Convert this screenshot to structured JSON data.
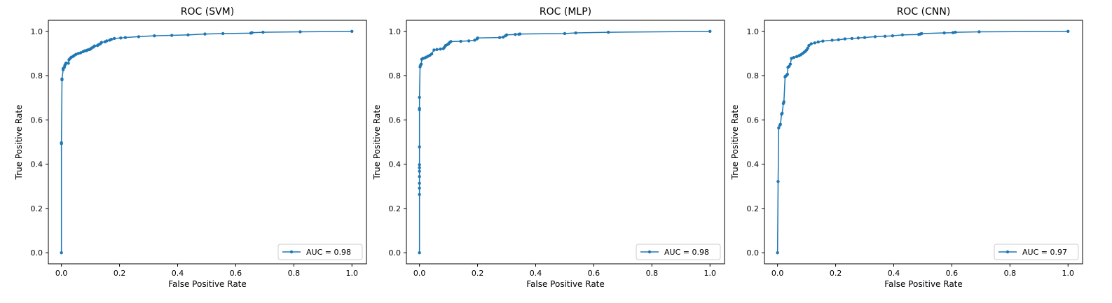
{
  "figure": {
    "background": "#ffffff"
  },
  "chart_data": [
    {
      "type": "line",
      "title": "ROC (SVM)",
      "xlabel": "False Positive Rate",
      "ylabel": "True Positive Rate",
      "xlim": [
        -0.045,
        1.05
      ],
      "ylim": [
        -0.05,
        1.05
      ],
      "xticks": [
        "0.0",
        "0.2",
        "0.4",
        "0.6",
        "0.8",
        "1.0"
      ],
      "yticks": [
        "0.0",
        "0.2",
        "0.4",
        "0.6",
        "0.8",
        "1.0"
      ],
      "legend_position": "lower-right",
      "grid": false,
      "series": [
        {
          "name": "AUC = 0.98",
          "color": "#1f77b4",
          "marker": "circle",
          "x": [
            0.0,
            0.0,
            0.0,
            0.002,
            0.002,
            0.006,
            0.006,
            0.01,
            0.012,
            0.014,
            0.016,
            0.024,
            0.026,
            0.03,
            0.034,
            0.04,
            0.044,
            0.05,
            0.058,
            0.066,
            0.074,
            0.08,
            0.086,
            0.09,
            0.096,
            0.1,
            0.104,
            0.11,
            0.114,
            0.124,
            0.128,
            0.134,
            0.138,
            0.15,
            0.156,
            0.166,
            0.172,
            0.182,
            0.204,
            0.22,
            0.266,
            0.32,
            0.38,
            0.436,
            0.494,
            0.556,
            0.652,
            0.656,
            0.694,
            0.822,
            1.0
          ],
          "y": [
            0.0,
            0.493,
            0.497,
            0.781,
            0.785,
            0.827,
            0.832,
            0.838,
            0.847,
            0.852,
            0.857,
            0.856,
            0.872,
            0.878,
            0.883,
            0.887,
            0.891,
            0.896,
            0.9,
            0.903,
            0.908,
            0.912,
            0.913,
            0.916,
            0.918,
            0.92,
            0.925,
            0.929,
            0.934,
            0.936,
            0.94,
            0.944,
            0.95,
            0.953,
            0.957,
            0.96,
            0.964,
            0.968,
            0.97,
            0.972,
            0.976,
            0.98,
            0.982,
            0.984,
            0.988,
            0.99,
            0.992,
            0.994,
            0.996,
            0.998,
            1.0
          ]
        }
      ]
    },
    {
      "type": "line",
      "title": "ROC (MLP)",
      "xlabel": "False Positive Rate",
      "ylabel": "True Positive Rate",
      "xlim": [
        -0.045,
        1.05
      ],
      "ylim": [
        -0.05,
        1.05
      ],
      "xticks": [
        "0.0",
        "0.2",
        "0.4",
        "0.6",
        "0.8",
        "1.0"
      ],
      "yticks": [
        "0.0",
        "0.2",
        "0.4",
        "0.6",
        "0.8",
        "1.0"
      ],
      "legend_position": "lower-right",
      "grid": false,
      "series": [
        {
          "name": "AUC = 0.98",
          "color": "#1f77b4",
          "marker": "circle",
          "x": [
            0.0,
            0.0,
            0.0,
            0.0,
            0.0,
            0.0,
            0.0,
            0.0,
            0.0,
            0.0,
            0.0,
            0.0,
            0.002,
            0.004,
            0.006,
            0.008,
            0.012,
            0.018,
            0.024,
            0.03,
            0.036,
            0.042,
            0.05,
            0.06,
            0.072,
            0.082,
            0.086,
            0.09,
            0.096,
            0.1,
            0.104,
            0.108,
            0.142,
            0.17,
            0.19,
            0.198,
            0.2,
            0.276,
            0.288,
            0.296,
            0.3,
            0.33,
            0.342,
            0.346,
            0.5,
            0.538,
            0.65,
            1.0
          ],
          "y": [
            0.0,
            0.263,
            0.292,
            0.314,
            0.344,
            0.368,
            0.384,
            0.398,
            0.478,
            0.646,
            0.652,
            0.702,
            0.84,
            0.848,
            0.852,
            0.874,
            0.878,
            0.88,
            0.884,
            0.888,
            0.892,
            0.898,
            0.916,
            0.918,
            0.92,
            0.922,
            0.928,
            0.936,
            0.94,
            0.944,
            0.95,
            0.954,
            0.955,
            0.957,
            0.96,
            0.966,
            0.97,
            0.972,
            0.974,
            0.98,
            0.984,
            0.986,
            0.987,
            0.988,
            0.99,
            0.993,
            0.996,
            1.0
          ]
        }
      ]
    },
    {
      "type": "line",
      "title": "ROC (CNN)",
      "xlabel": "False Positive Rate",
      "ylabel": "True Positive Rate",
      "xlim": [
        -0.045,
        1.05
      ],
      "ylim": [
        -0.05,
        1.05
      ],
      "xticks": [
        "0.0",
        "0.2",
        "0.4",
        "0.6",
        "0.8",
        "1.0"
      ],
      "yticks": [
        "0.0",
        "0.2",
        "0.4",
        "0.6",
        "0.8",
        "1.0"
      ],
      "legend_position": "lower-right",
      "grid": false,
      "series": [
        {
          "name": "AUC = 0.97",
          "color": "#1f77b4",
          "marker": "circle",
          "x": [
            0.0,
            0.002,
            0.004,
            0.008,
            0.01,
            0.014,
            0.016,
            0.02,
            0.022,
            0.026,
            0.028,
            0.032,
            0.034,
            0.036,
            0.04,
            0.044,
            0.048,
            0.056,
            0.066,
            0.074,
            0.08,
            0.086,
            0.092,
            0.096,
            0.1,
            0.104,
            0.108,
            0.116,
            0.128,
            0.14,
            0.156,
            0.188,
            0.21,
            0.232,
            0.256,
            0.278,
            0.3,
            0.336,
            0.37,
            0.396,
            0.43,
            0.486,
            0.492,
            0.496,
            0.574,
            0.604,
            0.612,
            0.694,
            1.0
          ],
          "y": [
            0.0,
            0.322,
            0.564,
            0.576,
            0.58,
            0.626,
            0.63,
            0.674,
            0.682,
            0.794,
            0.798,
            0.802,
            0.806,
            0.838,
            0.842,
            0.852,
            0.878,
            0.882,
            0.886,
            0.89,
            0.894,
            0.9,
            0.906,
            0.91,
            0.916,
            0.924,
            0.936,
            0.944,
            0.948,
            0.952,
            0.956,
            0.96,
            0.962,
            0.966,
            0.968,
            0.97,
            0.972,
            0.976,
            0.978,
            0.98,
            0.984,
            0.986,
            0.988,
            0.99,
            0.993,
            0.994,
            0.996,
            0.998,
            1.0
          ]
        }
      ]
    }
  ]
}
